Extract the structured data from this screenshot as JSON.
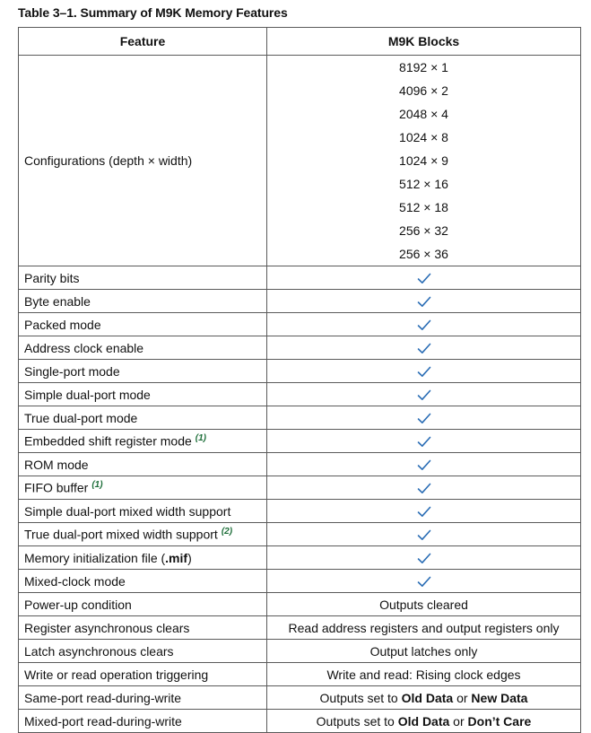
{
  "caption": "Table 3–1.  Summary of M9K Memory Features",
  "headers": {
    "feature": "Feature",
    "m9k": "M9K Blocks"
  },
  "configurations": {
    "feature": "Configurations (depth × width)",
    "values": [
      "8192 × 1",
      "4096 × 2",
      "2048 × 4",
      "1024 × 8",
      "1024 × 9",
      "512 × 16",
      "512 × 18",
      "256 × 32",
      "256 × 36"
    ]
  },
  "check_color": "#2a6db5",
  "check_rows": [
    {
      "feature": "Parity bits",
      "note": ""
    },
    {
      "feature": "Byte enable",
      "note": ""
    },
    {
      "feature": "Packed mode",
      "note": ""
    },
    {
      "feature": "Address clock enable",
      "note": ""
    },
    {
      "feature": "Single-port mode",
      "note": ""
    },
    {
      "feature": "Simple dual-port mode",
      "note": ""
    },
    {
      "feature": "True dual-port mode",
      "note": ""
    },
    {
      "feature": "Embedded shift register mode",
      "note": "(1)"
    },
    {
      "feature": "ROM mode",
      "note": ""
    },
    {
      "feature": "FIFO buffer",
      "note": "(1)"
    },
    {
      "feature": "Simple dual-port mixed width support",
      "note": ""
    },
    {
      "feature": "True dual-port mixed width support",
      "note": "(2)"
    },
    {
      "feature_prefix": "Memory initialization file (",
      "feature_bold": ".mif",
      "feature_suffix": ")"
    },
    {
      "feature": "Mixed-clock mode",
      "note": ""
    }
  ],
  "text_rows": [
    {
      "feature": "Power-up condition",
      "value": "Outputs cleared"
    },
    {
      "feature": "Register asynchronous clears",
      "value": "Read address registers and output registers only"
    },
    {
      "feature": "Latch asynchronous clears",
      "value": "Output latches only"
    },
    {
      "feature": "Write or read operation triggering",
      "value": "Write and read: Rising clock edges"
    }
  ],
  "rw_rows": [
    {
      "feature": "Same-port read-during-write",
      "prefix": "Outputs set to ",
      "opt1": "Old Data",
      "mid": " or ",
      "opt2": "New Data"
    },
    {
      "feature": "Mixed-port read-during-write",
      "prefix": "Outputs set to ",
      "opt1": "Old Data",
      "mid": " or ",
      "opt2": "Don’t Care"
    }
  ]
}
